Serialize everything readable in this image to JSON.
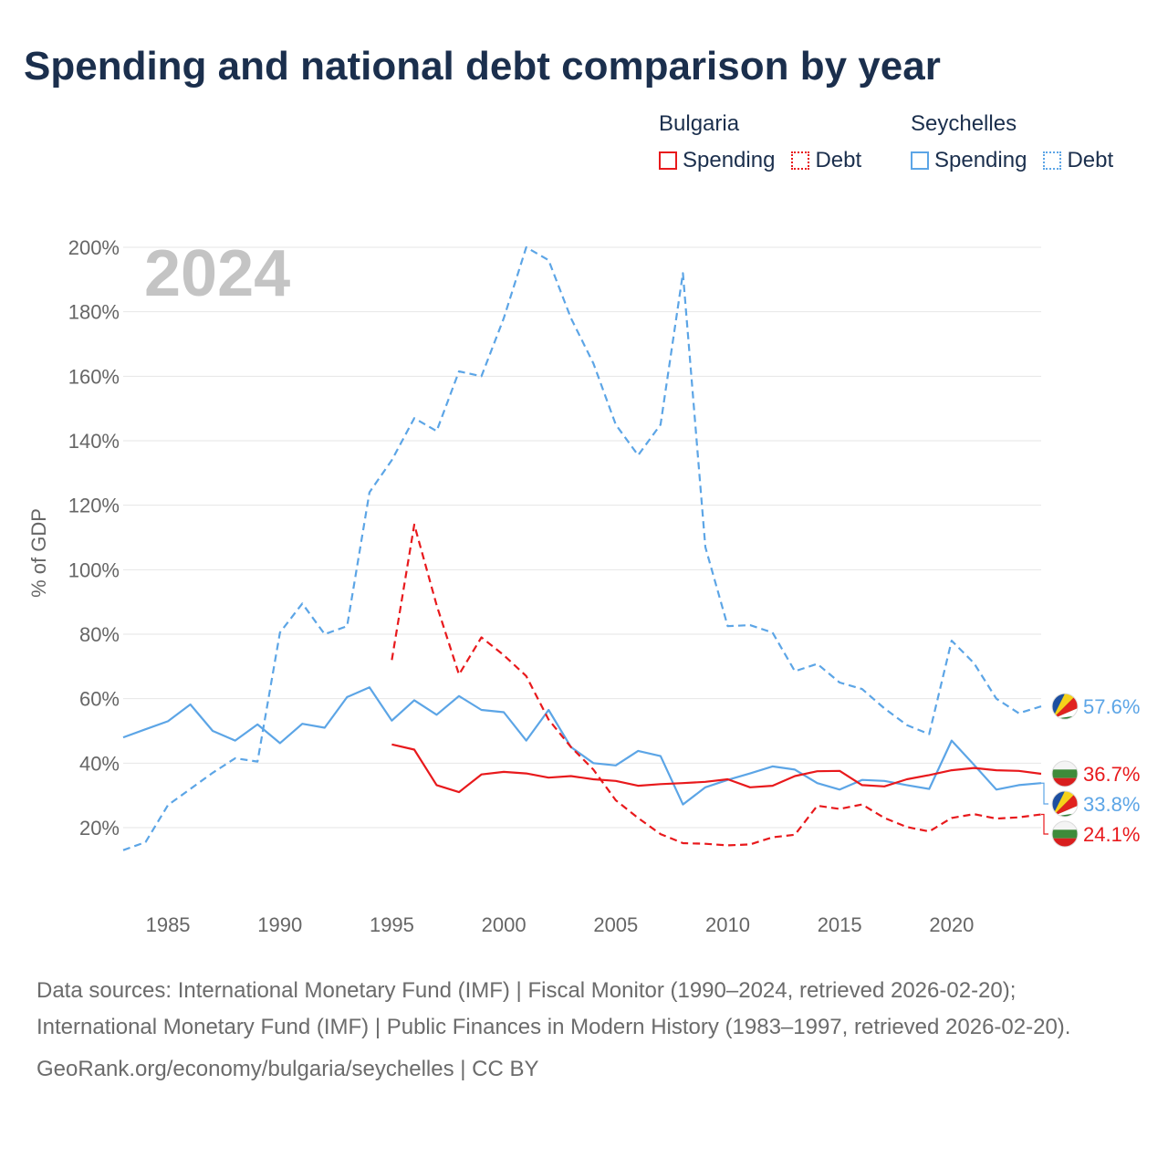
{
  "page": {
    "title": "Spending and national debt comparison by year",
    "year_label": "2024",
    "source_text": "Data sources: International Monetary Fund (IMF) | Fiscal Monitor (1990–2024, retrieved 2026-02-20); International Monetary Fund (IMF) | Public Finances in Modern History (1983–1997, retrieved 2026-02-20).",
    "credit": "GeoRank.org/economy/bulgaria/seychelles | CC BY"
  },
  "legend": {
    "bulgaria": {
      "country": "Bulgaria",
      "spending": "Spending",
      "debt": "Debt",
      "color": "#e8191c"
    },
    "seychelles": {
      "country": "Seychelles",
      "spending": "Spending",
      "debt": "Debt",
      "color": "#5ca5e6"
    }
  },
  "chart_data": {
    "type": "line",
    "title": "Spending and national debt comparison by year",
    "ylabel": "% of GDP",
    "xlabel": "",
    "xlim": [
      1983,
      2024
    ],
    "ylim": [
      0,
      200
    ],
    "x_ticks": [
      1985,
      1990,
      1995,
      2000,
      2005,
      2010,
      2015,
      2020
    ],
    "y_ticks": [
      20,
      40,
      60,
      80,
      100,
      120,
      140,
      160,
      180,
      200
    ],
    "y_tick_labels": [
      "20%",
      "40%",
      "60%",
      "80%",
      "100%",
      "120%",
      "140%",
      "160%",
      "180%",
      "200%"
    ],
    "grid": true,
    "series": [
      {
        "name": "Seychelles Debt",
        "country": "Seychelles",
        "kind": "Debt",
        "color": "#5ca5e6",
        "dashed": true,
        "end_label": "57.6%",
        "x": [
          1983,
          1984,
          1985,
          1986,
          1987,
          1988,
          1989,
          1990,
          1991,
          1992,
          1993,
          1994,
          1995,
          1996,
          1997,
          1998,
          1999,
          2000,
          2001,
          2002,
          2003,
          2004,
          2005,
          2006,
          2007,
          2008,
          2009,
          2010,
          2011,
          2012,
          2013,
          2014,
          2015,
          2016,
          2017,
          2018,
          2019,
          2020,
          2021,
          2022,
          2023,
          2024
        ],
        "values": [
          13,
          15.5,
          27,
          32,
          37,
          41.5,
          40.5,
          80.5,
          89.5,
          80,
          82.5,
          124,
          134,
          147,
          143,
          161.5,
          160,
          178,
          200,
          196,
          178,
          164,
          145,
          135.5,
          145,
          192,
          107,
          82.5,
          82.8,
          80.5,
          68.5,
          70.8,
          65,
          63,
          57,
          51.8,
          49,
          78,
          71,
          60,
          55.5,
          57.6
        ]
      },
      {
        "name": "Seychelles Spending",
        "country": "Seychelles",
        "kind": "Spending",
        "color": "#5ca5e6",
        "dashed": false,
        "end_label": "33.8%",
        "x": [
          1983,
          1984,
          1985,
          1986,
          1987,
          1988,
          1989,
          1990,
          1991,
          1992,
          1993,
          1994,
          1995,
          1996,
          1997,
          1998,
          1999,
          2000,
          2001,
          2002,
          2003,
          2004,
          2005,
          2006,
          2007,
          2008,
          2009,
          2010,
          2011,
          2012,
          2013,
          2014,
          2015,
          2016,
          2017,
          2018,
          2019,
          2020,
          2021,
          2022,
          2023,
          2024
        ],
        "values": [
          48,
          50.5,
          53,
          58.2,
          50,
          47,
          52,
          46.2,
          52.2,
          51,
          60.5,
          63.5,
          53.2,
          59.5,
          55,
          60.8,
          56.5,
          55.8,
          47,
          56.5,
          45,
          40,
          39.3,
          43.8,
          42.2,
          27.2,
          32.5,
          34.8,
          36.8,
          39,
          38,
          33.8,
          31.8,
          34.8,
          34.5,
          33.2,
          32,
          47,
          39.5,
          31.8,
          33.2,
          33.8
        ]
      },
      {
        "name": "Bulgaria Debt",
        "country": "Bulgaria",
        "kind": "Debt",
        "color": "#e8191c",
        "dashed": true,
        "end_label": "24.1%",
        "x": [
          1995,
          1996,
          1997,
          1998,
          1999,
          2000,
          2001,
          2002,
          2003,
          2004,
          2005,
          2006,
          2007,
          2008,
          2009,
          2010,
          2011,
          2012,
          2013,
          2014,
          2015,
          2016,
          2017,
          2018,
          2019,
          2020,
          2021,
          2022,
          2023,
          2024
        ],
        "values": [
          72,
          114,
          89,
          67.5,
          79,
          73.5,
          67,
          53.5,
          45,
          38,
          28.5,
          23,
          18,
          15.2,
          15,
          14.5,
          14.8,
          17,
          17.8,
          26.8,
          25.8,
          27.2,
          23,
          20.2,
          18.8,
          23,
          24.2,
          22.8,
          23.2,
          24.1
        ]
      },
      {
        "name": "Bulgaria Spending",
        "country": "Bulgaria",
        "kind": "Spending",
        "color": "#e8191c",
        "dashed": false,
        "end_label": "36.7%",
        "x": [
          1995,
          1996,
          1997,
          1998,
          1999,
          2000,
          2001,
          2002,
          2003,
          2004,
          2005,
          2006,
          2007,
          2008,
          2009,
          2010,
          2011,
          2012,
          2013,
          2014,
          2015,
          2016,
          2017,
          2018,
          2019,
          2020,
          2021,
          2022,
          2023,
          2024
        ],
        "values": [
          45.8,
          44.2,
          33.2,
          31,
          36.5,
          37.3,
          36.8,
          35.5,
          36,
          35,
          34.5,
          33,
          33.5,
          33.8,
          34.2,
          35,
          32.5,
          33,
          36,
          37.5,
          37.6,
          33.2,
          32.8,
          35,
          36.3,
          37.8,
          38.5,
          37.8,
          37.6,
          36.7
        ]
      }
    ]
  }
}
